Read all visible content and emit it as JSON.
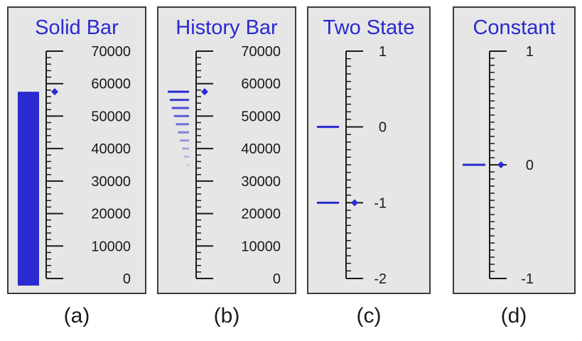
{
  "colors": {
    "accent": "#2a2ad0",
    "panel_bg": "#e6e6e6",
    "border": "#3c3c3c"
  },
  "panels": [
    {
      "id": "a",
      "title": "Solid Bar",
      "type": "solid-bar",
      "scale": {
        "min": 0,
        "max": 70000,
        "labels": [
          "70000",
          "60000",
          "50000",
          "40000",
          "30000",
          "20000",
          "10000",
          "0"
        ],
        "label_values": [
          70000,
          60000,
          50000,
          40000,
          30000,
          20000,
          10000,
          0
        ]
      },
      "value": 57500,
      "marker": 57500,
      "caption": "(a)"
    },
    {
      "id": "b",
      "title": "History Bar",
      "type": "history-bar",
      "scale": {
        "min": 0,
        "max": 70000,
        "labels": [
          "70000",
          "60000",
          "50000",
          "40000",
          "30000",
          "20000",
          "10000",
          "0"
        ],
        "label_values": [
          70000,
          60000,
          50000,
          40000,
          30000,
          20000,
          10000,
          0
        ]
      },
      "marker": 57500,
      "history": [
        57500,
        55000,
        52500,
        50000,
        47500,
        45000,
        42500,
        40000,
        37500,
        35000
      ],
      "caption": "(b)"
    },
    {
      "id": "c",
      "title": "Two State",
      "type": "two-state",
      "scale": {
        "min": -2,
        "max": 1,
        "labels": [
          "1",
          "0",
          "-1",
          "-2"
        ],
        "label_values": [
          1,
          0,
          -1,
          -2
        ]
      },
      "states": [
        0,
        -1
      ],
      "marker": -1,
      "caption": "(c)"
    },
    {
      "id": "d",
      "title": "Constant",
      "type": "constant",
      "scale": {
        "min": -1,
        "max": 1,
        "labels": [
          "1",
          "0",
          "-1"
        ],
        "label_values": [
          1,
          0,
          -1
        ]
      },
      "constant": 0,
      "marker": 0,
      "caption": "(d)"
    }
  ]
}
